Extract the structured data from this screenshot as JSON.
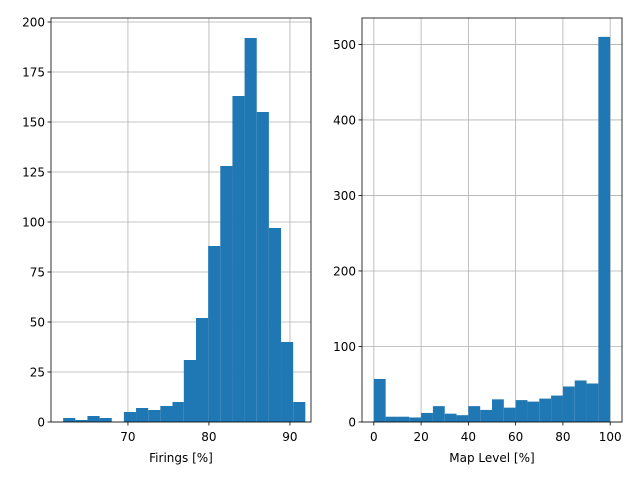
{
  "chart_data": [
    {
      "type": "histogram",
      "xlabel": "Firings [%]",
      "ylabel": "",
      "xlim": [
        60.5,
        92.6
      ],
      "ylim": [
        0,
        202
      ],
      "xticks": [
        70,
        80,
        90
      ],
      "yticks": [
        0,
        25,
        50,
        75,
        100,
        125,
        150,
        175,
        200
      ],
      "grid": true,
      "color": "#1f77b4",
      "bins": [
        {
          "x0": 62.0,
          "x1": 63.5,
          "value": 2
        },
        {
          "x0": 63.5,
          "x1": 65.0,
          "value": 1
        },
        {
          "x0": 65.0,
          "x1": 66.5,
          "value": 3
        },
        {
          "x0": 66.5,
          "x1": 68.0,
          "value": 2
        },
        {
          "x0": 68.0,
          "x1": 69.5,
          "value": 0
        },
        {
          "x0": 69.5,
          "x1": 71.0,
          "value": 5
        },
        {
          "x0": 71.0,
          "x1": 72.5,
          "value": 7
        },
        {
          "x0": 72.5,
          "x1": 74.0,
          "value": 6
        },
        {
          "x0": 74.0,
          "x1": 75.5,
          "value": 8
        },
        {
          "x0": 75.5,
          "x1": 76.9,
          "value": 10
        },
        {
          "x0": 76.9,
          "x1": 78.4,
          "value": 31
        },
        {
          "x0": 78.4,
          "x1": 79.9,
          "value": 52
        },
        {
          "x0": 79.9,
          "x1": 81.4,
          "value": 88
        },
        {
          "x0": 81.4,
          "x1": 82.9,
          "value": 128
        },
        {
          "x0": 82.9,
          "x1": 84.4,
          "value": 163
        },
        {
          "x0": 84.4,
          "x1": 85.9,
          "value": 192
        },
        {
          "x0": 85.9,
          "x1": 87.4,
          "value": 155
        },
        {
          "x0": 87.4,
          "x1": 88.9,
          "value": 97
        },
        {
          "x0": 88.9,
          "x1": 90.4,
          "value": 40
        },
        {
          "x0": 90.4,
          "x1": 91.9,
          "value": 10
        }
      ]
    },
    {
      "type": "histogram",
      "xlabel": "Map Level [%]",
      "ylabel": "",
      "xlim": [
        -5,
        105
      ],
      "ylim": [
        0,
        535
      ],
      "xticks": [
        0,
        20,
        40,
        60,
        80,
        100
      ],
      "yticks": [
        0,
        100,
        200,
        300,
        400,
        500
      ],
      "grid": true,
      "color": "#1f77b4",
      "bins": [
        {
          "x0": 0,
          "x1": 5,
          "value": 57
        },
        {
          "x0": 5,
          "x1": 10,
          "value": 7
        },
        {
          "x0": 10,
          "x1": 15,
          "value": 7
        },
        {
          "x0": 15,
          "x1": 20,
          "value": 6
        },
        {
          "x0": 20,
          "x1": 25,
          "value": 12
        },
        {
          "x0": 25,
          "x1": 30,
          "value": 21
        },
        {
          "x0": 30,
          "x1": 35,
          "value": 11
        },
        {
          "x0": 35,
          "x1": 40,
          "value": 9
        },
        {
          "x0": 40,
          "x1": 45,
          "value": 21
        },
        {
          "x0": 45,
          "x1": 50,
          "value": 16
        },
        {
          "x0": 50,
          "x1": 55,
          "value": 30
        },
        {
          "x0": 55,
          "x1": 60,
          "value": 19
        },
        {
          "x0": 60,
          "x1": 65,
          "value": 29
        },
        {
          "x0": 65,
          "x1": 70,
          "value": 27
        },
        {
          "x0": 70,
          "x1": 75,
          "value": 31
        },
        {
          "x0": 75,
          "x1": 80,
          "value": 35
        },
        {
          "x0": 80,
          "x1": 85,
          "value": 47
        },
        {
          "x0": 85,
          "x1": 90,
          "value": 55
        },
        {
          "x0": 90,
          "x1": 95,
          "value": 51
        },
        {
          "x0": 95,
          "x1": 100,
          "value": 510
        }
      ]
    }
  ]
}
